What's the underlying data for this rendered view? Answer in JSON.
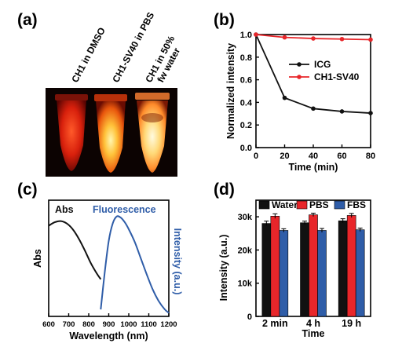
{
  "panels": {
    "a": {
      "label": "(a)",
      "tube_labels": [
        "CH1 in DMSO",
        "CH1-SV40 in PBS",
        "CH1  in 50%",
        "fw water"
      ]
    },
    "b": {
      "label": "(b)"
    },
    "c": {
      "label": "(c)"
    },
    "d": {
      "label": "(d)"
    }
  },
  "chart_data": [
    {
      "id": "b",
      "type": "line",
      "title": "",
      "xlabel": "Time (min)",
      "ylabel": "Normalized intensity",
      "xlim": [
        0,
        80
      ],
      "ylim": [
        0.0,
        1.0
      ],
      "xticks": [
        0,
        20,
        40,
        60,
        80
      ],
      "yticks": [
        0.0,
        0.2,
        0.4,
        0.6,
        0.8,
        1.0
      ],
      "legend_position": "center-right",
      "series": [
        {
          "name": "ICG",
          "color": "#111111",
          "x": [
            0,
            20,
            40,
            60,
            80
          ],
          "y": [
            1.0,
            0.44,
            0.345,
            0.32,
            0.305
          ]
        },
        {
          "name": "CH1-SV40",
          "color": "#e8262a",
          "x": [
            0,
            20,
            40,
            60,
            80
          ],
          "y": [
            1.0,
            0.975,
            0.965,
            0.96,
            0.955
          ]
        }
      ]
    },
    {
      "id": "c",
      "type": "line",
      "title": "",
      "xlabel": "Wavelength (nm)",
      "ylabel_left": "Abs",
      "ylabel_right": "Intensity (a.u.)",
      "xlim": [
        600,
        1200
      ],
      "xticks": [
        600,
        700,
        800,
        900,
        1000,
        1100,
        1200
      ],
      "series": [
        {
          "name": "Abs",
          "color": "#111111",
          "x": [
            600,
            630,
            660,
            690,
            720,
            750,
            780,
            810,
            840,
            860
          ],
          "y": [
            0.78,
            0.81,
            0.82,
            0.8,
            0.75,
            0.67,
            0.57,
            0.46,
            0.37,
            0.32
          ]
        },
        {
          "name": "Fluorescence",
          "color": "#2f5da8",
          "x": [
            860,
            880,
            900,
            920,
            940,
            960,
            980,
            1000,
            1030,
            1060,
            1090,
            1120,
            1150,
            1180,
            1200
          ],
          "y": [
            0.06,
            0.38,
            0.65,
            0.8,
            0.86,
            0.85,
            0.81,
            0.75,
            0.64,
            0.5,
            0.36,
            0.23,
            0.13,
            0.06,
            0.03
          ]
        }
      ]
    },
    {
      "id": "d",
      "type": "bar",
      "title": "",
      "xlabel": "Time",
      "ylabel": "Intensity (a.u.)",
      "ylim": [
        0,
        35000
      ],
      "yticks": [
        0,
        10000,
        20000,
        30000
      ],
      "ytick_labels": [
        "0",
        "10k",
        "20k",
        "30k"
      ],
      "categories": [
        "2 min",
        "4 h",
        "19 h"
      ],
      "legend_position": "top",
      "series": [
        {
          "name": "Water",
          "color": "#111111",
          "values": [
            28000,
            28200,
            28800
          ],
          "errors": [
            700,
            500,
            600
          ]
        },
        {
          "name": "PBS",
          "color": "#e8262a",
          "values": [
            30200,
            30600,
            30400
          ],
          "errors": [
            700,
            500,
            600
          ]
        },
        {
          "name": "FBS",
          "color": "#2f5da8",
          "values": [
            25900,
            25900,
            26100
          ],
          "errors": [
            500,
            600,
            500
          ]
        }
      ]
    }
  ]
}
